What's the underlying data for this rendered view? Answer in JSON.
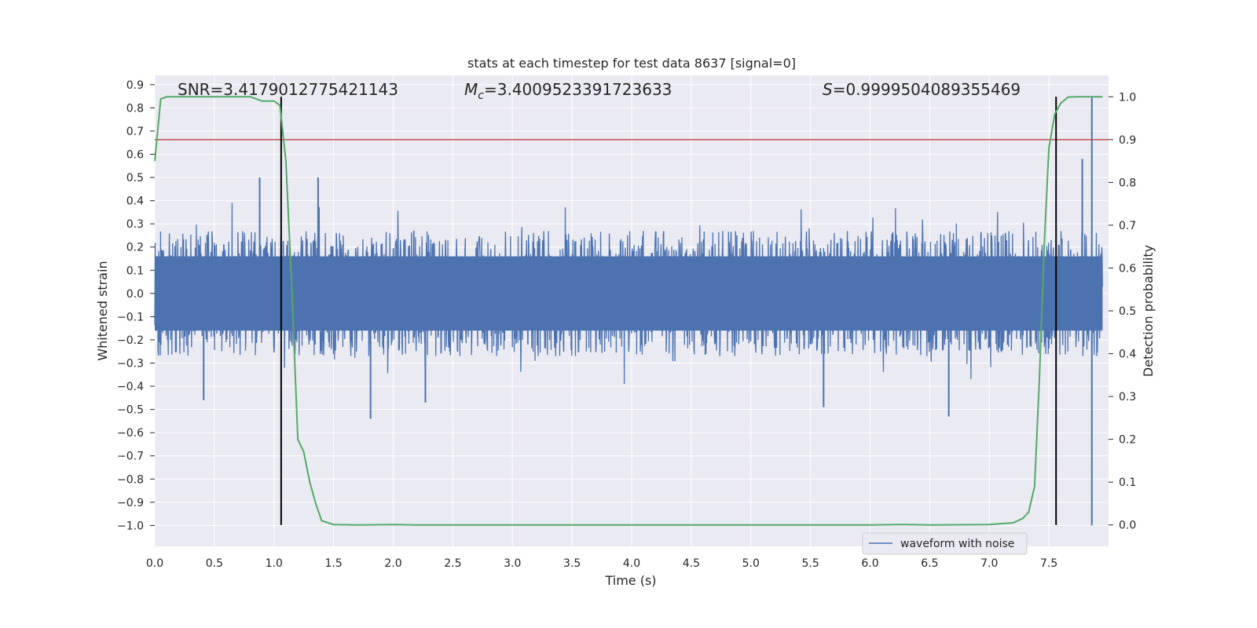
{
  "chart_data": {
    "type": "line",
    "title": "stats at each timestep for test data 8637 [signal=0]",
    "xlabel": "Time (s)",
    "ylabel_left": "Whitened strain",
    "ylabel_right": "Detection probability",
    "xlim": [
      0.0,
      8.0
    ],
    "ylim_left": [
      -1.09,
      0.94
    ],
    "ylim_right": [
      -0.05,
      1.05
    ],
    "x_ticks": [
      "0.0",
      "0.5",
      "1.0",
      "1.5",
      "2.0",
      "2.5",
      "3.0",
      "3.5",
      "4.0",
      "4.5",
      "5.0",
      "5.5",
      "6.0",
      "6.5",
      "7.0",
      "7.5"
    ],
    "y_ticks_left": [
      "0.9",
      "0.8",
      "0.7",
      "0.6",
      "0.5",
      "0.4",
      "0.3",
      "0.2",
      "0.1",
      "0.0",
      "-0.1",
      "-0.2",
      "-0.3",
      "-0.4",
      "-0.5",
      "-0.6",
      "-0.7",
      "-0.8",
      "-0.9",
      "-1.0"
    ],
    "y_ticks_right": [
      "1.0",
      "0.9",
      "0.8",
      "0.7",
      "0.6",
      "0.5",
      "0.4",
      "0.3",
      "0.2",
      "0.1",
      "0.0"
    ],
    "grid": true,
    "legend": {
      "entries": [
        "waveform with noise"
      ],
      "placement": "lower-right"
    },
    "annotations": {
      "snr": "SNR=3.4179012775421143",
      "mc_symbol": "M",
      "mc_sub": "c",
      "mc_value": "=3.4009523391723633",
      "s_symbol": "S",
      "s_value": "=0.9999504089355469"
    },
    "series": [
      {
        "name": "waveform with noise",
        "kind": "noise-waveform",
        "axis": "left",
        "color": "#4c72b0",
        "typical_envelope": [
          -0.27,
          0.27
        ],
        "notable_peaks": [
          {
            "x": 0.88,
            "y": 0.5
          },
          {
            "x": 1.37,
            "y": 0.5
          },
          {
            "x": 1.81,
            "y": -0.54
          },
          {
            "x": 2.27,
            "y": -0.47
          },
          {
            "x": 0.41,
            "y": -0.46
          },
          {
            "x": 6.66,
            "y": -0.53
          },
          {
            "x": 5.61,
            "y": -0.49
          },
          {
            "x": 7.78,
            "y": 0.58
          },
          {
            "x": 7.86,
            "y": 0.85
          },
          {
            "x": 7.86,
            "y": -1.0
          }
        ]
      },
      {
        "kind": "detection-probability",
        "axis": "right",
        "color": "#55a868",
        "x": [
          0.0,
          0.05,
          0.1,
          0.2,
          0.4,
          0.6,
          0.8,
          0.9,
          1.0,
          1.05,
          1.1,
          1.15,
          1.2,
          1.25,
          1.3,
          1.35,
          1.4,
          1.5,
          1.7,
          2.0,
          2.2,
          4.0,
          6.0,
          6.3,
          6.5,
          7.0,
          7.2,
          7.28,
          7.33,
          7.38,
          7.42,
          7.46,
          7.5,
          7.55,
          7.6,
          7.66,
          7.72,
          7.8,
          7.95
        ],
        "y": [
          0.85,
          0.995,
          1.0,
          1.0,
          1.0,
          1.0,
          1.0,
          0.99,
          0.99,
          0.98,
          0.85,
          0.55,
          0.2,
          0.17,
          0.1,
          0.05,
          0.01,
          0.001,
          0.0,
          0.001,
          0.0,
          0.0,
          0.0,
          0.001,
          0.0,
          0.001,
          0.005,
          0.015,
          0.03,
          0.09,
          0.34,
          0.65,
          0.88,
          0.96,
          0.985,
          0.999,
          1.0,
          1.0,
          1.0
        ]
      },
      {
        "kind": "threshold",
        "axis": "right",
        "color": "#c44e52",
        "y": 0.9
      }
    ],
    "vertical_lines": [
      1.06,
      7.56
    ]
  }
}
